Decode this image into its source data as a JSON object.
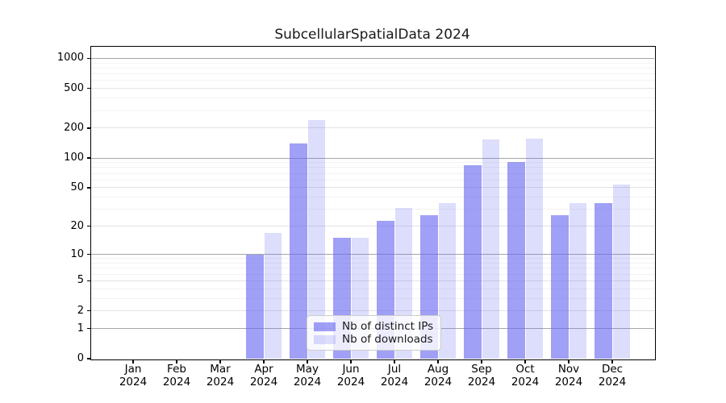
{
  "chart_data": {
    "type": "bar",
    "title": "SubcellularSpatialData 2024",
    "categories": [
      "Jan 2024",
      "Feb 2024",
      "Mar 2024",
      "Apr 2024",
      "May 2024",
      "Jun 2024",
      "Jul 2024",
      "Aug 2024",
      "Sep 2024",
      "Oct 2024",
      "Nov 2024",
      "Dec 2024"
    ],
    "series": [
      {
        "name": "Nb of distinct IPs",
        "color": "rgba(102,102,240,0.62)",
        "values": [
          0,
          0,
          0,
          10,
          140,
          15,
          23,
          26,
          85,
          92,
          26,
          35
        ]
      },
      {
        "name": "Nb of downloads",
        "color": "rgba(102,102,240,0.22)",
        "values": [
          0,
          0,
          0,
          17,
          240,
          15,
          31,
          35,
          155,
          157,
          35,
          54
        ]
      }
    ],
    "xlabel": "",
    "ylabel": "",
    "yscale": "log1p",
    "yticks": [
      0,
      1,
      2,
      5,
      10,
      20,
      50,
      100,
      200,
      500,
      1000
    ],
    "minor_yticks": [
      3,
      4,
      6,
      7,
      8,
      9,
      30,
      40,
      60,
      70,
      80,
      90,
      300,
      400,
      600,
      700,
      800,
      900
    ],
    "ylim": [
      0,
      1300
    ],
    "grid": true,
    "legend_position": "lower center"
  },
  "colors": {
    "grid_power10": "#a6a6a6",
    "grid_major": "#e2e2e2",
    "grid_minor": "#f2f2f2",
    "axis": "#000000",
    "background": "#ffffff",
    "legend_border": "#cccccc"
  }
}
